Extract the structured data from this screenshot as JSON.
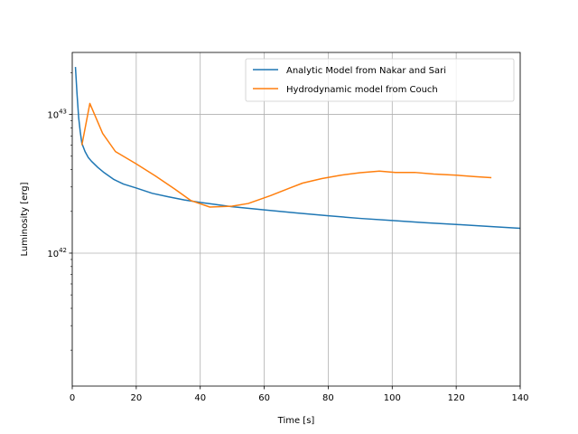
{
  "chart_data": {
    "type": "line",
    "xlabel": "Time [s]",
    "ylabel": "Luminosity [erg]",
    "xlim": [
      0,
      140
    ],
    "ylim": [
      1.1e+41,
      2.8e+43
    ],
    "yscale": "log",
    "grid": true,
    "legend_position": "top-right",
    "x_ticks": [
      0,
      20,
      40,
      60,
      80,
      100,
      120,
      140
    ],
    "y_ticks": [
      {
        "value": 1e+42,
        "base": "10",
        "exp": "42"
      },
      {
        "value": 1e+43,
        "base": "10",
        "exp": "43"
      }
    ],
    "series": [
      {
        "name": "Analytic Model from Nakar and Sari",
        "color": "#1f77b4",
        "x": [
          1,
          1.5,
          2,
          2.5,
          3,
          4,
          5,
          6,
          8,
          10,
          13,
          16,
          20,
          25,
          30,
          35,
          40,
          45,
          50,
          60,
          70,
          80,
          90,
          100,
          110,
          120,
          130,
          140
        ],
        "y": [
          2.2e+43,
          1.4e+43,
          9.5e+42,
          7.5e+42,
          6.2e+42,
          5.4e+42,
          4.9e+42,
          4.6e+42,
          4.15e+42,
          3.8e+42,
          3.4e+42,
          3.15e+42,
          2.95e+42,
          2.7e+42,
          2.55e+42,
          2.42e+42,
          2.32e+42,
          2.24e+42,
          2.16e+42,
          2.05e+42,
          1.95e+42,
          1.86e+42,
          1.78e+42,
          1.72e+42,
          1.66e+42,
          1.61e+42,
          1.56e+42,
          1.51e+42
        ]
      },
      {
        "name": "Hydrodynamic model from Couch",
        "color": "#ff7f0e",
        "x": [
          3,
          5.5,
          9.5,
          13.5,
          20,
          26,
          32,
          37,
          43,
          50,
          55,
          62,
          68,
          72,
          78,
          84,
          90,
          96,
          101,
          107,
          113,
          120,
          126,
          131
        ],
        "y": [
          6e+42,
          1.2e+43,
          7.3e+42,
          5.4e+42,
          4.4e+42,
          3.6e+42,
          2.9e+42,
          2.4e+42,
          2.15e+42,
          2.18e+42,
          2.28e+42,
          2.6e+42,
          2.95e+42,
          3.2e+42,
          3.45e+42,
          3.65e+42,
          3.8e+42,
          3.9e+42,
          3.82e+42,
          3.82e+42,
          3.72e+42,
          3.65e+42,
          3.56e+42,
          3.5e+42
        ]
      }
    ]
  }
}
